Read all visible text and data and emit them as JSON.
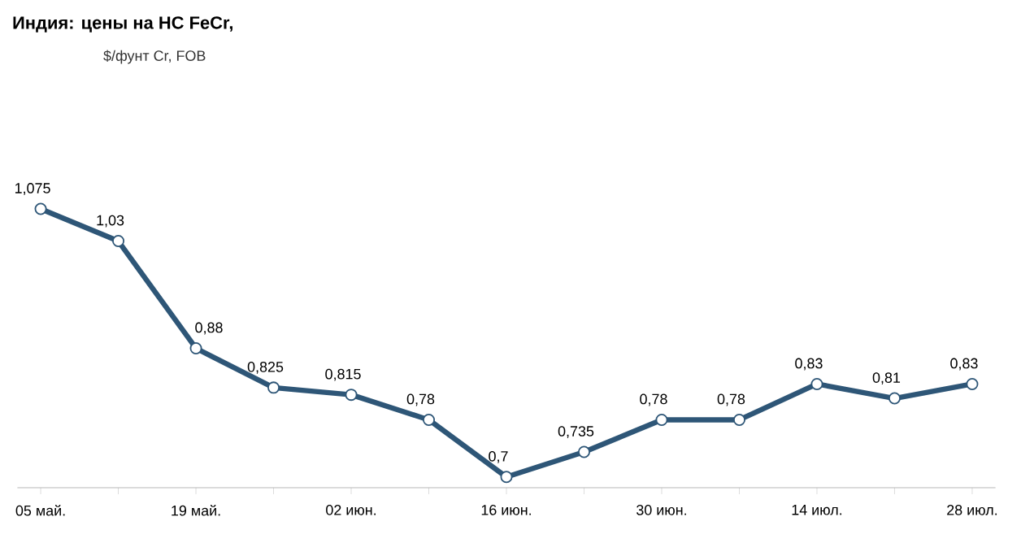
{
  "chart_data": {
    "type": "line",
    "title": "Индия: цены на HC FeCr,",
    "subtitle": "$/фунт Cr, FOB",
    "categories": [
      "05 май.",
      null,
      "19 май.",
      null,
      "02 июн.",
      null,
      "16 июн.",
      null,
      "30 июн.",
      null,
      "14 июл.",
      null,
      "28 июл."
    ],
    "series": [
      {
        "color": "#2e5677",
        "values": [
          1.075,
          1.03,
          0.88,
          0.825,
          0.815,
          0.78,
          0.7,
          0.735,
          0.78,
          0.78,
          0.83,
          0.81,
          0.83
        ],
        "value_labels": [
          "1,075",
          "1,03",
          "0,88",
          "0,825",
          "0,815",
          "0,78",
          "0,7",
          "0,735",
          "0,78",
          "0,78",
          "0,83",
          "0,81",
          "0,83"
        ]
      }
    ],
    "marker": "circle"
  }
}
